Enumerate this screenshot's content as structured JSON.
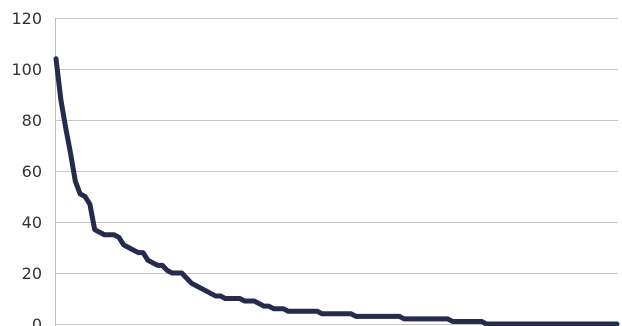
{
  "chart_data": {
    "type": "line",
    "title": "",
    "xlabel": "",
    "ylabel": "",
    "ylim": [
      0,
      120
    ],
    "yticks": [
      0,
      20,
      40,
      60,
      80,
      100,
      120
    ],
    "xlim": [
      1,
      117
    ],
    "grid": "horizontal",
    "legend": "none",
    "colors": {
      "series": "#252b4d",
      "grid": "#c8c8c8",
      "axis": "#bdbdbd",
      "text": "#333333"
    },
    "series": [
      {
        "values": [
          104,
          88,
          77,
          67,
          56,
          51,
          50,
          47,
          37,
          36,
          35,
          35,
          35,
          34,
          31,
          30,
          29,
          28,
          28,
          25,
          24,
          23,
          23,
          21,
          20,
          20,
          20,
          18,
          16,
          15,
          14,
          13,
          12,
          11,
          11,
          10,
          10,
          10,
          10,
          9,
          9,
          9,
          8,
          7,
          7,
          6,
          6,
          6,
          5,
          5,
          5,
          5,
          5,
          5,
          5,
          4,
          4,
          4,
          4,
          4,
          4,
          4,
          3,
          3,
          3,
          3,
          3,
          3,
          3,
          3,
          3,
          3,
          2,
          2,
          2,
          2,
          2,
          2,
          2,
          2,
          2,
          2,
          1,
          1,
          1,
          1,
          1,
          1,
          1,
          0,
          0,
          0,
          0,
          0,
          0,
          0,
          0,
          0,
          0,
          0,
          0,
          0,
          0,
          0,
          0,
          0,
          0,
          0,
          0,
          0,
          0,
          0,
          0,
          0,
          0,
          0,
          0
        ]
      }
    ]
  }
}
